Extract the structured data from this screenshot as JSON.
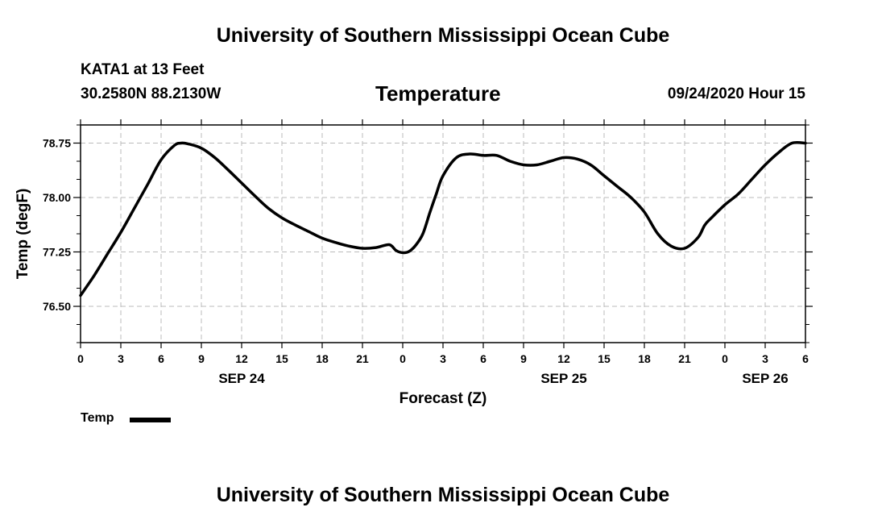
{
  "header": {
    "title": "University of Southern Mississippi Ocean Cube",
    "station": "KATA1 at 13 Feet",
    "coords": "30.2580N 88.2130W",
    "chart_title": "Temperature",
    "issued": "09/24/2020 Hour 15"
  },
  "footer": {
    "title": "University of Southern Mississippi Ocean Cube"
  },
  "legend": {
    "label": "Temp"
  },
  "colors": {
    "line": "#000000",
    "grid": "#bbbbbb",
    "background": "#ffffff"
  },
  "chart_data": {
    "type": "line",
    "title": "Temperature",
    "xlabel": "Forecast (Z)",
    "ylabel": "Temp (degF)",
    "xlim": [
      0,
      54
    ],
    "ylim": [
      76.0,
      79.0
    ],
    "y_ticks": [
      76.5,
      77.25,
      78.0,
      78.75
    ],
    "y_tick_labels": [
      "76.50",
      "77.25",
      "78.00",
      "78.75"
    ],
    "x_ticks": [
      0,
      3,
      6,
      9,
      12,
      15,
      18,
      21,
      24,
      27,
      30,
      33,
      36,
      39,
      42,
      45,
      48,
      51,
      54
    ],
    "x_tick_labels": [
      "0",
      "3",
      "6",
      "9",
      "12",
      "15",
      "18",
      "21",
      "0",
      "3",
      "6",
      "9",
      "12",
      "15",
      "18",
      "21",
      "0",
      "3",
      "6"
    ],
    "date_labels": [
      {
        "x": 12,
        "label": "SEP 24"
      },
      {
        "x": 36,
        "label": "SEP 25"
      },
      {
        "x": 51,
        "label": "SEP 26"
      }
    ],
    "grid": true,
    "legend_position": "bottom-left",
    "series": [
      {
        "name": "Temp",
        "x": [
          0,
          1,
          2,
          3,
          4,
          5,
          6,
          7,
          7.5,
          8,
          9,
          10,
          11,
          12,
          13,
          14,
          15,
          16,
          17,
          18,
          19,
          20,
          21,
          22,
          23,
          23.5,
          24,
          24.5,
          25,
          25.5,
          26,
          26.5,
          27,
          28,
          29,
          30,
          31,
          32,
          33,
          34,
          35,
          36,
          37,
          38,
          39,
          40,
          41,
          42,
          43,
          44,
          45,
          46,
          46.5,
          47,
          48,
          49,
          50,
          51,
          52,
          53,
          54
        ],
        "values": [
          76.65,
          76.92,
          77.22,
          77.52,
          77.85,
          78.18,
          78.52,
          78.72,
          78.75,
          78.74,
          78.68,
          78.55,
          78.38,
          78.2,
          78.02,
          77.85,
          77.72,
          77.62,
          77.53,
          77.44,
          77.38,
          77.33,
          77.3,
          77.31,
          77.35,
          77.27,
          77.24,
          77.26,
          77.35,
          77.5,
          77.78,
          78.05,
          78.3,
          78.55,
          78.6,
          78.58,
          78.58,
          78.5,
          78.45,
          78.45,
          78.5,
          78.55,
          78.53,
          78.45,
          78.3,
          78.15,
          78.0,
          77.8,
          77.5,
          77.33,
          77.3,
          77.45,
          77.62,
          77.72,
          77.9,
          78.05,
          78.25,
          78.45,
          78.62,
          78.75,
          78.75
        ]
      }
    ]
  }
}
